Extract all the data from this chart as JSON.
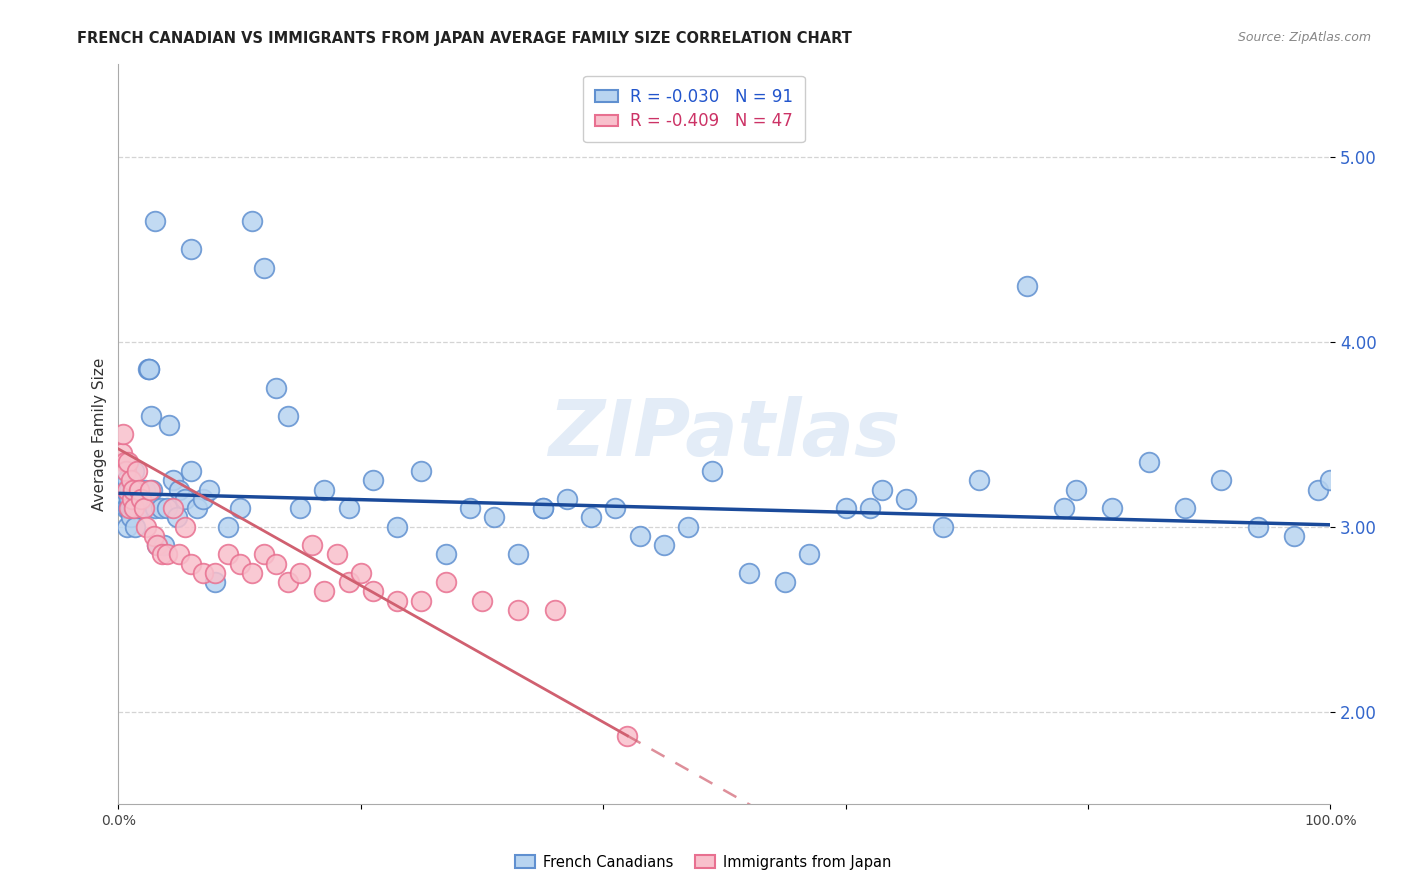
{
  "title": "FRENCH CANADIAN VS IMMIGRANTS FROM JAPAN AVERAGE FAMILY SIZE CORRELATION CHART",
  "source": "Source: ZipAtlas.com",
  "ylabel": "Average Family Size",
  "xlim": [
    0.0,
    1.0
  ],
  "ylim": [
    1.5,
    5.5
  ],
  "yticks": [
    2.0,
    3.0,
    4.0,
    5.0
  ],
  "watermark": "ZIPatlas",
  "background_color": "#ffffff",
  "grid_color": "#d0d0d0",
  "blue_scatter_face": "#b8d4f0",
  "blue_scatter_edge": "#6090d0",
  "pink_scatter_face": "#f8c0cc",
  "pink_scatter_edge": "#e87090",
  "blue_line_color": "#1a4a9a",
  "pink_line_color": "#d06070",
  "french_canadians_x": [
    0.003,
    0.004,
    0.005,
    0.006,
    0.006,
    0.007,
    0.007,
    0.008,
    0.008,
    0.009,
    0.009,
    0.01,
    0.01,
    0.011,
    0.012,
    0.013,
    0.014,
    0.015,
    0.016,
    0.017,
    0.018,
    0.019,
    0.02,
    0.022,
    0.024,
    0.025,
    0.027,
    0.028,
    0.03,
    0.032,
    0.035,
    0.038,
    0.04,
    0.042,
    0.045,
    0.048,
    0.05,
    0.055,
    0.06,
    0.065,
    0.07,
    0.075,
    0.08,
    0.09,
    0.1,
    0.11,
    0.12,
    0.13,
    0.14,
    0.15,
    0.17,
    0.19,
    0.21,
    0.23,
    0.25,
    0.27,
    0.29,
    0.31,
    0.33,
    0.35,
    0.37,
    0.39,
    0.41,
    0.43,
    0.45,
    0.47,
    0.49,
    0.52,
    0.55,
    0.57,
    0.6,
    0.63,
    0.65,
    0.68,
    0.71,
    0.75,
    0.78,
    0.82,
    0.85,
    0.88,
    0.91,
    0.94,
    0.97,
    0.99,
    1.0,
    0.025,
    0.03,
    0.06,
    0.35,
    0.62,
    0.79
  ],
  "french_canadians_y": [
    3.25,
    3.15,
    3.2,
    3.3,
    3.1,
    3.25,
    3.0,
    3.2,
    3.1,
    3.15,
    3.2,
    3.1,
    3.05,
    3.2,
    3.1,
    3.3,
    3.0,
    3.2,
    3.1,
    3.15,
    3.2,
    3.1,
    3.15,
    3.2,
    3.85,
    3.85,
    3.6,
    3.2,
    3.1,
    2.9,
    3.1,
    2.9,
    3.1,
    3.55,
    3.25,
    3.05,
    3.2,
    3.15,
    3.3,
    3.1,
    3.15,
    3.2,
    2.7,
    3.0,
    3.1,
    4.65,
    4.4,
    3.75,
    3.6,
    3.1,
    3.2,
    3.1,
    3.25,
    3.0,
    3.3,
    2.85,
    3.1,
    3.05,
    2.85,
    3.1,
    3.15,
    3.05,
    3.1,
    2.95,
    2.9,
    3.0,
    3.3,
    2.75,
    2.7,
    2.85,
    3.1,
    3.2,
    3.15,
    3.0,
    3.25,
    4.3,
    3.1,
    3.1,
    3.35,
    3.1,
    3.25,
    3.0,
    2.95,
    3.2,
    3.25,
    3.85,
    4.65,
    4.5,
    3.1,
    3.1,
    3.2
  ],
  "japan_x": [
    0.003,
    0.004,
    0.005,
    0.006,
    0.007,
    0.008,
    0.009,
    0.01,
    0.011,
    0.012,
    0.013,
    0.015,
    0.017,
    0.019,
    0.021,
    0.023,
    0.026,
    0.029,
    0.032,
    0.036,
    0.04,
    0.045,
    0.05,
    0.055,
    0.06,
    0.07,
    0.08,
    0.09,
    0.1,
    0.11,
    0.12,
    0.13,
    0.14,
    0.15,
    0.16,
    0.17,
    0.18,
    0.19,
    0.2,
    0.21,
    0.23,
    0.25,
    0.27,
    0.3,
    0.33,
    0.36,
    0.42
  ],
  "japan_y": [
    3.4,
    3.5,
    3.35,
    3.3,
    3.2,
    3.35,
    3.1,
    3.25,
    3.15,
    3.2,
    3.1,
    3.3,
    3.2,
    3.15,
    3.1,
    3.0,
    3.2,
    2.95,
    2.9,
    2.85,
    2.85,
    3.1,
    2.85,
    3.0,
    2.8,
    2.75,
    2.75,
    2.85,
    2.8,
    2.75,
    2.85,
    2.8,
    2.7,
    2.75,
    2.9,
    2.65,
    2.85,
    2.7,
    2.75,
    2.65,
    2.6,
    2.6,
    2.7,
    2.6,
    2.55,
    2.55,
    1.87
  ]
}
